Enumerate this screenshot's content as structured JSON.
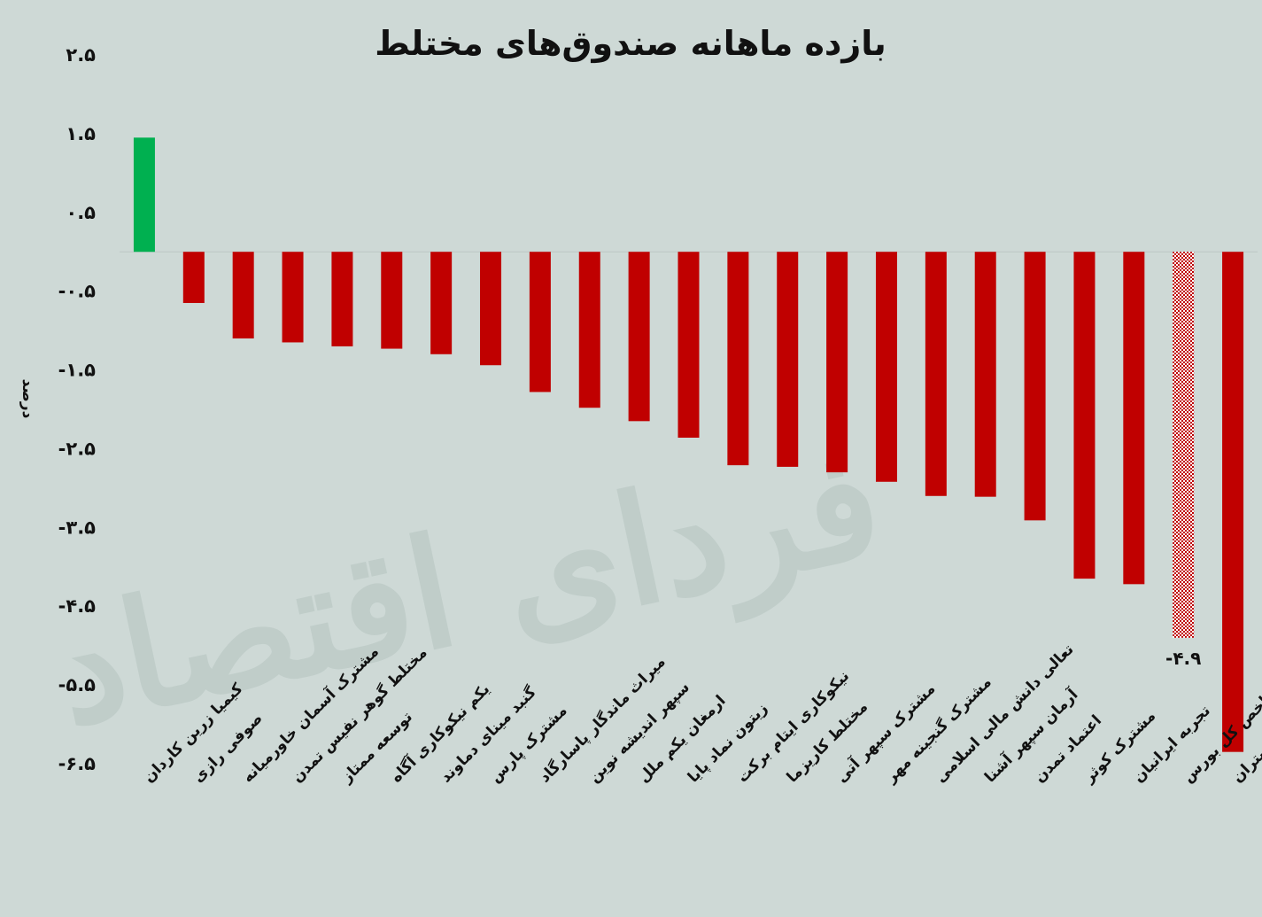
{
  "chart_data": {
    "type": "bar",
    "title": "بازده ماهانه صندوق‌های مختلط",
    "ylabel": "درصد",
    "xlabel": "",
    "ylim": [
      -6.5,
      2.5
    ],
    "yticks": [
      2.5,
      1.5,
      0.5,
      -0.5,
      -1.5,
      -2.5,
      -3.5,
      -4.5,
      -5.5,
      -6.5
    ],
    "ytick_labels": [
      "۲.۵",
      "۱.۵",
      "۰.۵",
      "-۰.۵",
      "-۱.۵",
      "-۲.۵",
      "-۳.۵",
      "-۴.۵",
      "-۵.۵",
      "-۶.۵"
    ],
    "categories": [
      "کیمیا زرین کاردان",
      "صوفی رازی",
      "مشترک آسمان خاورمیانه",
      "مختلط گوهر نفیس تمدن",
      "توسعه ممتاز",
      "یکم نیکوکاری آگاه",
      "گنبد مینای دماوند",
      "مشترک پارس",
      "میراث ماندگار پاسارگاد",
      "سپهر اندیشه نوین",
      "ارمغان یکم ملل",
      "زیتون نماد پایا",
      "نیکوکاری ایتام برکت",
      "مختلط کاریزما",
      "مشترک سپهر آتی",
      "مشترک گنجینه مهر",
      "تعالی دانش مالی اسلامی",
      "آرمان سپهر آشنا",
      "اعتماد تمدن",
      "مشترک کوثر",
      "تجربه ایرانیان",
      "شاخص کل بورس",
      "مشترک نیکی گستران"
    ],
    "values": [
      1.45,
      -0.65,
      -1.1,
      -1.15,
      -1.2,
      -1.23,
      -1.3,
      -1.44,
      -1.78,
      -1.98,
      -2.15,
      -2.36,
      -2.71,
      -2.73,
      -2.8,
      -2.92,
      -3.1,
      -3.11,
      -3.41,
      -4.15,
      -4.22,
      -4.9,
      -6.35
    ],
    "colors": [
      "#00b050",
      "#c00000",
      "#c00000",
      "#c00000",
      "#c00000",
      "#c00000",
      "#c00000",
      "#c00000",
      "#c00000",
      "#c00000",
      "#c00000",
      "#c00000",
      "#c00000",
      "#c00000",
      "#c00000",
      "#c00000",
      "#c00000",
      "#c00000",
      "#c00000",
      "#c00000",
      "#c00000",
      "pattern",
      "#c00000"
    ],
    "data_labels": [
      {
        "index": 21,
        "text": "-۴.۹"
      }
    ],
    "grid": false,
    "legend": "none",
    "watermark": "فردای اقتصاد"
  }
}
